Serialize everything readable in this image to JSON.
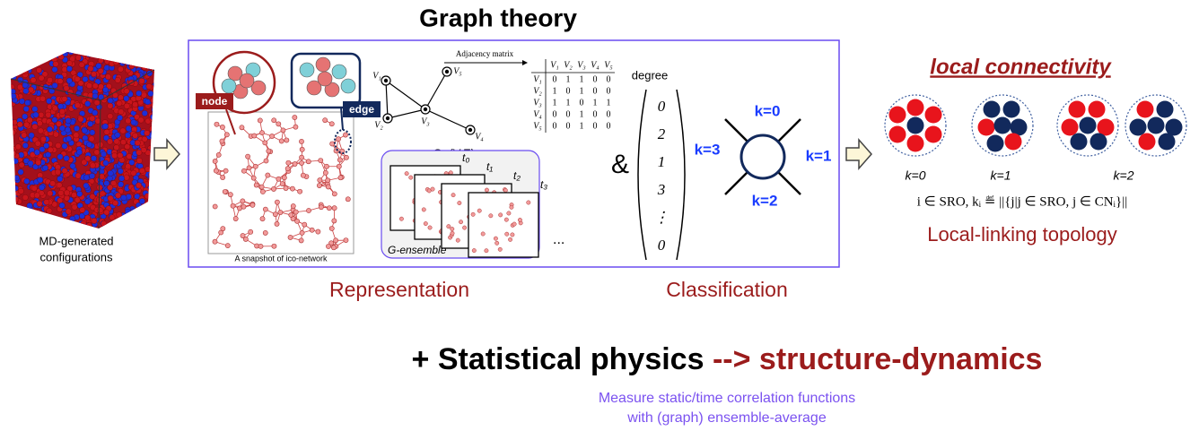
{
  "title": "Graph theory",
  "input": {
    "label_lines": [
      "MD-generated",
      "configurations"
    ]
  },
  "representation": {
    "node_tag": "node",
    "edge_tag": "edge",
    "snapshot_caption": "A snapshot of ico-network",
    "graph": {
      "vertices": [
        "V₁",
        "V₂",
        "V₃",
        "V₄",
        "V₅"
      ],
      "name": "G=(V,E)"
    },
    "adjacency": {
      "title": "Adjacency matrix",
      "columns": [
        "V₁",
        "V₂",
        "V₃",
        "V₄",
        "V₅"
      ],
      "rows": [
        {
          "label": "V₁",
          "cells": [
            0,
            1,
            1,
            0,
            0
          ]
        },
        {
          "label": "V₂",
          "cells": [
            1,
            0,
            1,
            0,
            0
          ]
        },
        {
          "label": "V₃",
          "cells": [
            1,
            1,
            0,
            1,
            1
          ]
        },
        {
          "label": "V₄",
          "cells": [
            0,
            0,
            1,
            0,
            0
          ]
        },
        {
          "label": "V₅",
          "cells": [
            0,
            0,
            1,
            0,
            0
          ]
        }
      ]
    },
    "ensemble": {
      "label": "G-ensemble",
      "times": [
        "t₀",
        "t₁",
        "t₂",
        "t₃"
      ],
      "more": "..."
    },
    "caption": "Representation"
  },
  "ampersand": "&",
  "classification": {
    "vector_label": "degree",
    "vector": [
      "0",
      "2",
      "1",
      "3",
      "⋮",
      "0"
    ],
    "k_labels": [
      "k=0",
      "k=3",
      "k=1",
      "k=2"
    ],
    "caption": "Classification"
  },
  "local": {
    "title": "local connectivity",
    "cluster_labels": [
      "k=0",
      "k=1",
      "k=2"
    ],
    "formula": "i ∈ SRO,  kᵢ ≝ ||{j|j ∈ SRO, j ∈ CNᵢ}||",
    "caption": "Local-linking topology"
  },
  "bottom": {
    "lead": "+ Statistical physics",
    "arrow": "--> structure-dynamics",
    "notes": [
      "Measure static/time correlation functions",
      "with (graph) ensemble-average"
    ]
  }
}
